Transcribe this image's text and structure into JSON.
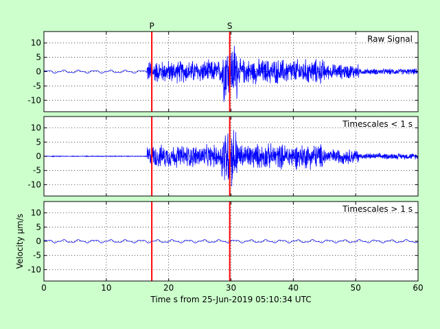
{
  "chart_data": {
    "type": "line",
    "x_range": [
      0,
      60
    ],
    "xticks": [
      0,
      10,
      20,
      30,
      40,
      50,
      60
    ],
    "xlabel": "Time s from 25-Jun-2019 05:10:34 UTC",
    "ylabel": "Velocity μm/s",
    "yticks": [
      -10,
      -5,
      0,
      5,
      10
    ],
    "ylim": [
      -14,
      14
    ],
    "grid": true,
    "colors": {
      "signal": "#0000ff",
      "markers": "#ff0000",
      "background": "#ccffcc"
    },
    "markers": [
      {
        "label": "P",
        "x": 17.3
      },
      {
        "label": "S",
        "x": 29.8
      }
    ],
    "panels": [
      {
        "label": "Raw Signal",
        "segments": [
          {
            "from": 0,
            "to": 16.5,
            "amplitude": 0.6,
            "period": 2.5,
            "type": "smooth"
          },
          {
            "from": 16.5,
            "to": 28.5,
            "amplitude": 4.5,
            "type": "noise"
          },
          {
            "from": 28.5,
            "to": 31,
            "amplitude": 12,
            "type": "noise"
          },
          {
            "from": 31,
            "to": 45,
            "amplitude": 5,
            "type": "noise"
          },
          {
            "from": 45,
            "to": 50.5,
            "amplitude": 3,
            "type": "noise"
          },
          {
            "from": 50.5,
            "to": 60,
            "amplitude": 1.2,
            "type": "noise"
          }
        ]
      },
      {
        "label": "Timescales < 1 s",
        "segments": [
          {
            "from": 0,
            "to": 16.5,
            "amplitude": 0.15,
            "type": "noise"
          },
          {
            "from": 16.5,
            "to": 28.5,
            "amplitude": 4.5,
            "type": "noise"
          },
          {
            "from": 28.5,
            "to": 31,
            "amplitude": 12,
            "type": "noise"
          },
          {
            "from": 31,
            "to": 45,
            "amplitude": 5,
            "type": "noise"
          },
          {
            "from": 45,
            "to": 50.5,
            "amplitude": 3,
            "type": "noise"
          },
          {
            "from": 50.5,
            "to": 60,
            "amplitude": 1.2,
            "type": "noise"
          }
        ]
      },
      {
        "label": "Timescales > 1 s",
        "segments": [
          {
            "from": 0,
            "to": 60,
            "amplitude": 0.6,
            "period": 2.5,
            "type": "smooth"
          }
        ]
      }
    ]
  }
}
